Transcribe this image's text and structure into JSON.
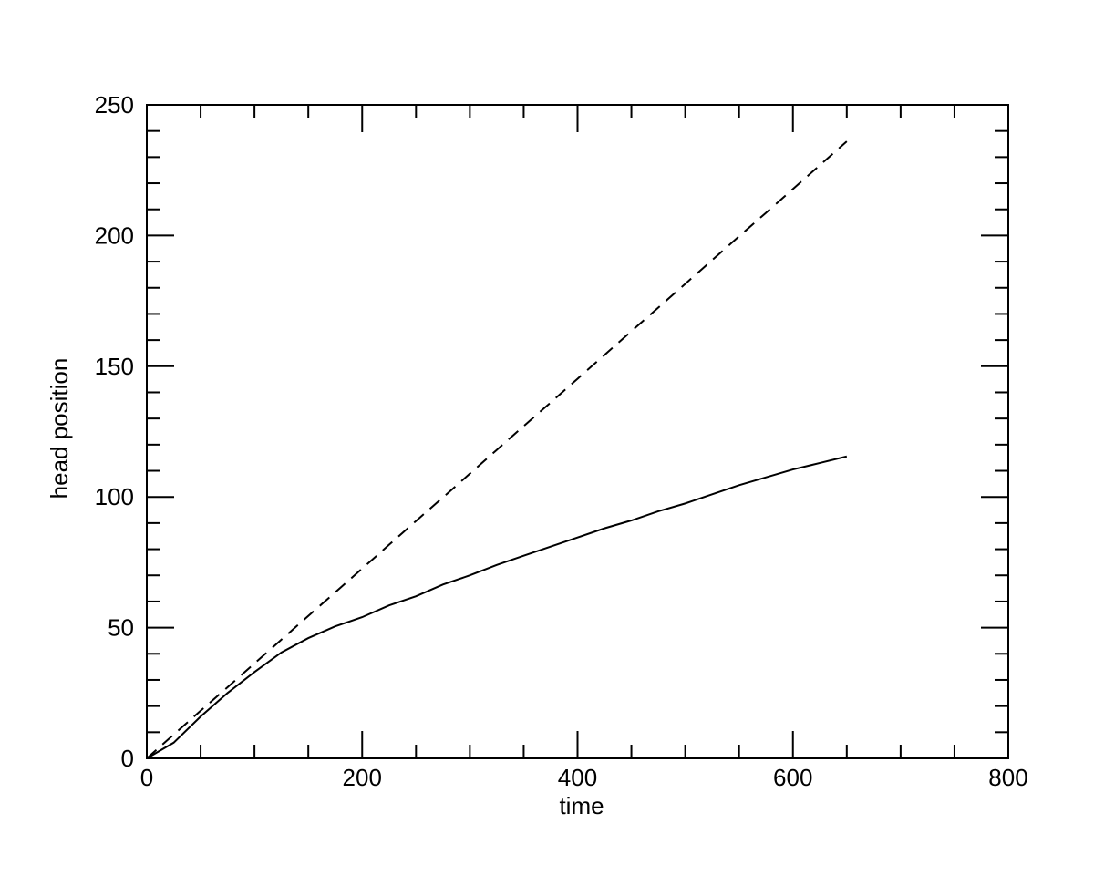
{
  "chart_data": {
    "type": "line",
    "xlabel": "time",
    "ylabel": "head position",
    "x": [
      0,
      25,
      50,
      75,
      100,
      125,
      150,
      175,
      200,
      225,
      250,
      275,
      300,
      325,
      350,
      375,
      400,
      425,
      450,
      475,
      500,
      525,
      550,
      575,
      600,
      625,
      650
    ],
    "series": [
      {
        "color": "#000000",
        "style": "solid",
        "values": [
          0,
          6,
          16,
          25,
          33,
          40.5,
          46,
          50.5,
          54,
          58.5,
          62,
          66.5,
          70,
          74,
          77.5,
          81,
          84.5,
          88,
          91,
          94.5,
          97.5,
          101,
          104.5,
          107.5,
          110.5,
          113,
          115.5
        ]
      },
      {
        "color": "#000000",
        "style": "dashed",
        "values": [
          0,
          9.1,
          18.2,
          27.2,
          36.3,
          45.4,
          54.5,
          63.5,
          72.6,
          81.7,
          90.8,
          99.8,
          108.9,
          118,
          127.1,
          136.1,
          145.2,
          154.3,
          163.4,
          172.4,
          181.5,
          190.6,
          199.7,
          208.7,
          217.8,
          226.9,
          236
        ]
      }
    ],
    "xlim": [
      0,
      800
    ],
    "xticks": [
      0,
      200,
      400,
      600,
      800
    ],
    "xminorticks": [
      50,
      100,
      150,
      250,
      300,
      350,
      450,
      500,
      550,
      650,
      700,
      750
    ],
    "ylim": [
      0,
      250
    ],
    "yticks": [
      0,
      50,
      100,
      150,
      200,
      250
    ],
    "yminorticks": [
      10,
      20,
      30,
      40,
      60,
      70,
      80,
      90,
      110,
      120,
      130,
      140,
      160,
      170,
      180,
      190,
      210,
      220,
      230,
      240
    ],
    "grid": false
  }
}
